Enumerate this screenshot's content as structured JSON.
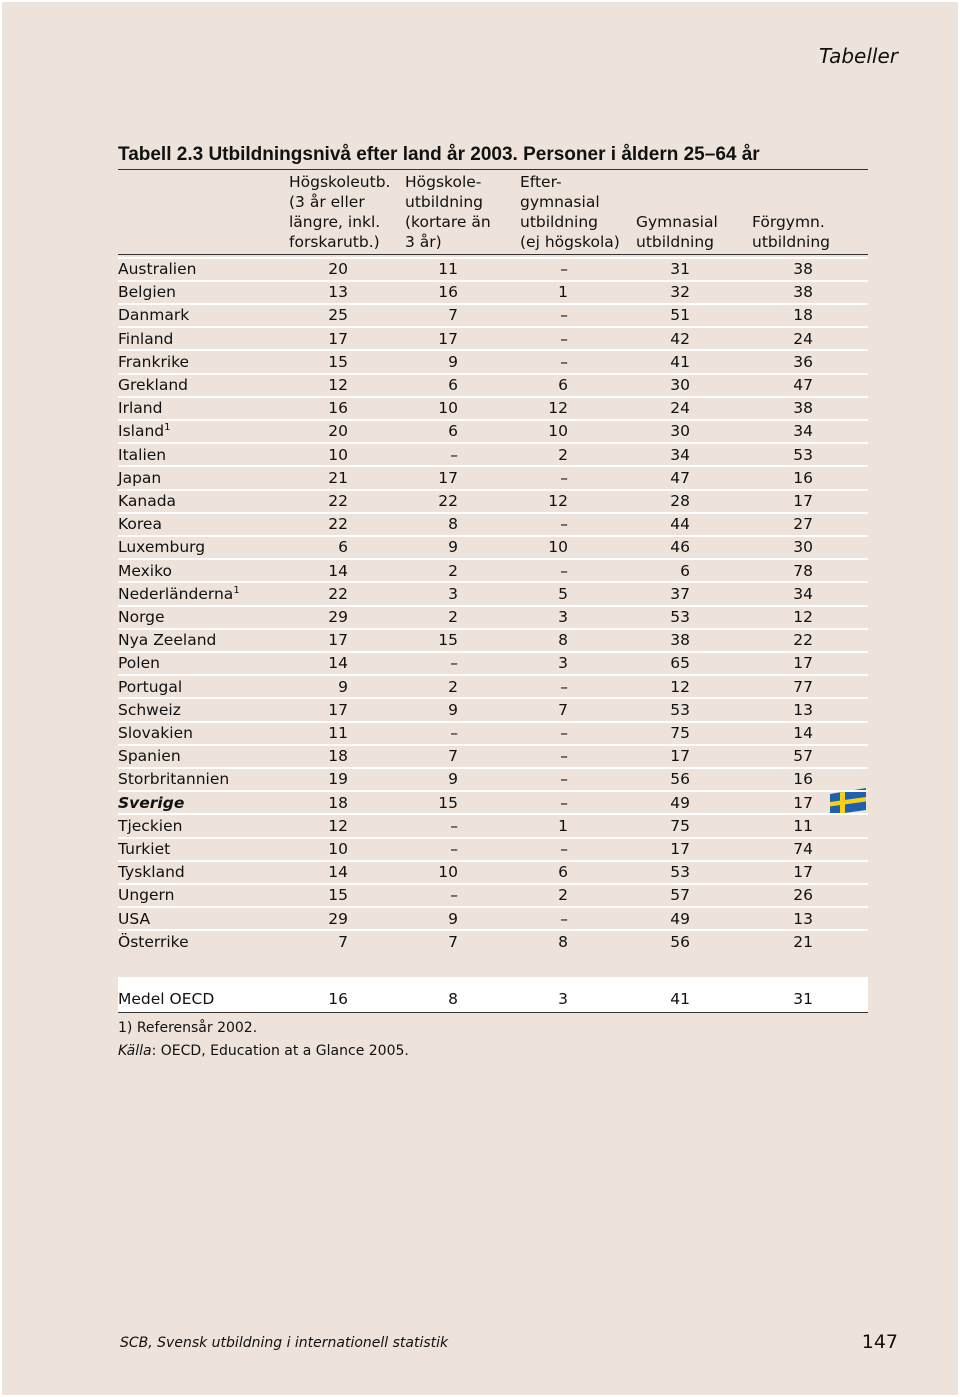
{
  "header": {
    "section": "Tabeller"
  },
  "table": {
    "title": "Tabell 2.3 Utbildningsnivå efter land år 2003. Personer i åldern 25–64 år",
    "columns": [
      [
        "Högskoleutb.",
        "(3 år eller",
        "längre, inkl.",
        "forskarutb.)"
      ],
      [
        "Högskole-",
        "utbildning",
        "(kortare än",
        "3 år)"
      ],
      [
        "Efter-",
        "gymnasial",
        "utbildning",
        "(ej högskola)"
      ],
      [
        "Gymnasial",
        "utbildning"
      ],
      [
        "Förgymn.",
        "utbildning"
      ]
    ],
    "rows": [
      {
        "label": "Australien",
        "cells": [
          20,
          11,
          "–",
          31,
          38
        ]
      },
      {
        "label": "Belgien",
        "cells": [
          13,
          16,
          1,
          32,
          38
        ]
      },
      {
        "label": "Danmark",
        "cells": [
          25,
          7,
          "–",
          51,
          18
        ]
      },
      {
        "label": "Finland",
        "cells": [
          17,
          17,
          "–",
          42,
          24
        ]
      },
      {
        "label": "Frankrike",
        "cells": [
          15,
          9,
          "–",
          41,
          36
        ]
      },
      {
        "label": "Grekland",
        "cells": [
          12,
          6,
          6,
          30,
          47
        ]
      },
      {
        "label": "Irland",
        "cells": [
          16,
          10,
          12,
          24,
          38
        ]
      },
      {
        "label": "Island",
        "sup": "1",
        "cells": [
          20,
          6,
          10,
          30,
          34
        ]
      },
      {
        "label": "Italien",
        "cells": [
          10,
          "–",
          2,
          34,
          53
        ]
      },
      {
        "label": "Japan",
        "cells": [
          21,
          17,
          "–",
          47,
          16
        ]
      },
      {
        "label": "Kanada",
        "cells": [
          22,
          22,
          12,
          28,
          17
        ]
      },
      {
        "label": "Korea",
        "cells": [
          22,
          8,
          "–",
          44,
          27
        ]
      },
      {
        "label": "Luxemburg",
        "cells": [
          6,
          9,
          10,
          46,
          30
        ]
      },
      {
        "label": "Mexiko",
        "cells": [
          14,
          2,
          "–",
          6,
          78
        ]
      },
      {
        "label": "Nederländerna",
        "sup": "1",
        "cells": [
          22,
          3,
          5,
          37,
          34
        ]
      },
      {
        "label": "Norge",
        "cells": [
          29,
          2,
          3,
          53,
          12
        ]
      },
      {
        "label": "Nya Zeeland",
        "cells": [
          17,
          15,
          8,
          38,
          22
        ]
      },
      {
        "label": "Polen",
        "cells": [
          14,
          "–",
          3,
          65,
          17
        ]
      },
      {
        "label": "Portugal",
        "cells": [
          9,
          2,
          "–",
          12,
          77
        ]
      },
      {
        "label": "Schweiz",
        "cells": [
          17,
          9,
          7,
          53,
          13
        ]
      },
      {
        "label": "Slovakien",
        "cells": [
          11,
          "–",
          "–",
          75,
          14
        ]
      },
      {
        "label": "Spanien",
        "cells": [
          18,
          7,
          "–",
          17,
          57
        ]
      },
      {
        "label": "Storbritannien",
        "cells": [
          19,
          9,
          "–",
          56,
          16
        ]
      },
      {
        "label": "Sverige",
        "emphasis": true,
        "cells": [
          18,
          15,
          "–",
          49,
          17
        ]
      },
      {
        "label": "Tjeckien",
        "cells": [
          12,
          "–",
          1,
          75,
          11
        ]
      },
      {
        "label": "Turkiet",
        "cells": [
          10,
          "–",
          "–",
          17,
          74
        ]
      },
      {
        "label": "Tyskland",
        "cells": [
          14,
          10,
          6,
          53,
          17
        ]
      },
      {
        "label": "Ungern",
        "cells": [
          15,
          "–",
          2,
          57,
          26
        ]
      },
      {
        "label": "USA",
        "cells": [
          29,
          9,
          "–",
          49,
          13
        ]
      },
      {
        "label": "Österrike",
        "cells": [
          7,
          7,
          8,
          56,
          21
        ]
      }
    ],
    "total": {
      "label": "Medel OECD",
      "cells": [
        16,
        8,
        3,
        41,
        31
      ]
    },
    "footnote": "1) Referensår 2002.",
    "source_label": "Källa",
    "source_text": ": OECD, Education at a Glance 2005."
  },
  "footer": {
    "publication": "SCB, Svensk utbildning i internationell statistik",
    "page": "147"
  }
}
